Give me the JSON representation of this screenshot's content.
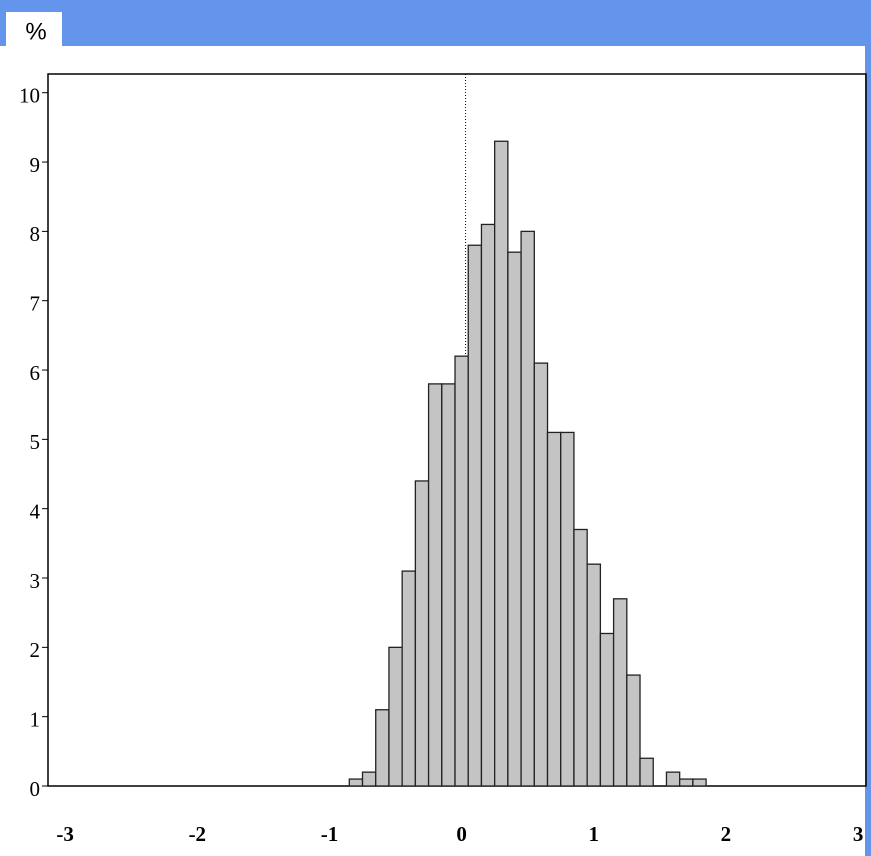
{
  "chart_data": {
    "type": "histogram",
    "y_label": "%",
    "bins": [
      -0.85,
      -0.75,
      -0.65,
      -0.55,
      -0.45,
      -0.35,
      -0.25,
      -0.15,
      -0.05,
      0.05,
      0.15,
      0.25,
      0.35,
      0.45,
      0.55,
      0.65,
      0.75,
      0.85,
      0.95,
      1.05,
      1.15,
      1.25,
      1.35,
      1.45,
      1.55,
      1.65,
      1.75,
      1.85
    ],
    "values": [
      0.1,
      0.2,
      1.1,
      2.0,
      3.1,
      4.4,
      5.8,
      5.8,
      6.2,
      7.8,
      8.1,
      9.3,
      7.7,
      8.0,
      6.1,
      5.1,
      5.1,
      3.7,
      3.2,
      2.2,
      2.7,
      1.6,
      0.4,
      0,
      0.2,
      0.1,
      0.1
    ],
    "color": "#c4c4c4",
    "reference_line_x": 0.03,
    "xlim": [
      -3.13,
      3.06
    ],
    "xticks": [
      -3,
      -2,
      -1,
      0,
      1,
      2,
      3
    ],
    "ylim": [
      0,
      10.27
    ],
    "yticks": [
      0,
      1,
      2,
      3,
      4,
      5,
      6,
      7,
      8,
      9,
      10
    ],
    "grid": false
  }
}
